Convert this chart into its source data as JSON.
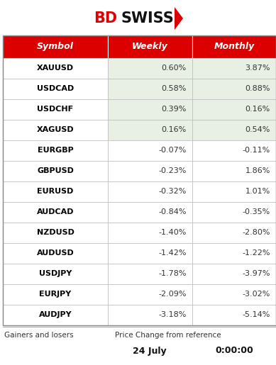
{
  "header": [
    "Symbol",
    "Weekly",
    "Monthly"
  ],
  "rows": [
    [
      "XAUUSD",
      "0.60%",
      "3.87%"
    ],
    [
      "USDCAD",
      "0.58%",
      "0.88%"
    ],
    [
      "USDCHF",
      "0.39%",
      "0.16%"
    ],
    [
      "XAGUSD",
      "0.16%",
      "0.54%"
    ],
    [
      "EURGBP",
      "-0.07%",
      "-0.11%"
    ],
    [
      "GBPUSD",
      "-0.23%",
      "1.86%"
    ],
    [
      "EURUSD",
      "-0.32%",
      "1.01%"
    ],
    [
      "AUDCAD",
      "-0.84%",
      "-0.35%"
    ],
    [
      "NZDUSD",
      "-1.40%",
      "-2.80%"
    ],
    [
      "AUDUSD",
      "-1.42%",
      "-1.22%"
    ],
    [
      "USDJPY",
      "-1.78%",
      "-3.97%"
    ],
    [
      "EURJPY",
      "-2.09%",
      "-3.02%"
    ],
    [
      "AUDJPY",
      "-3.18%",
      "-5.14%"
    ]
  ],
  "green_rows": [
    0,
    1,
    2,
    3
  ],
  "footer_left": "Gainers and losers",
  "footer_center": "Price Change from reference",
  "footer_date": "24 July",
  "footer_time": "0:00:00",
  "header_bg": "#DD0000",
  "header_text_color": "#FFFFFF",
  "green_bg": "#E8F0E4",
  "white_bg": "#FFFFFF",
  "symbol_col_bg": "#FFFFFF",
  "border_color": "#BBBBBB",
  "symbol_text_color": "#000000",
  "value_text_color": "#333333",
  "logo_bd_color": "#DD0000",
  "logo_swiss_color": "#111111",
  "arrow_color": "#DD0000",
  "fig_width": 3.89,
  "fig_height": 5.15,
  "dpi": 100
}
